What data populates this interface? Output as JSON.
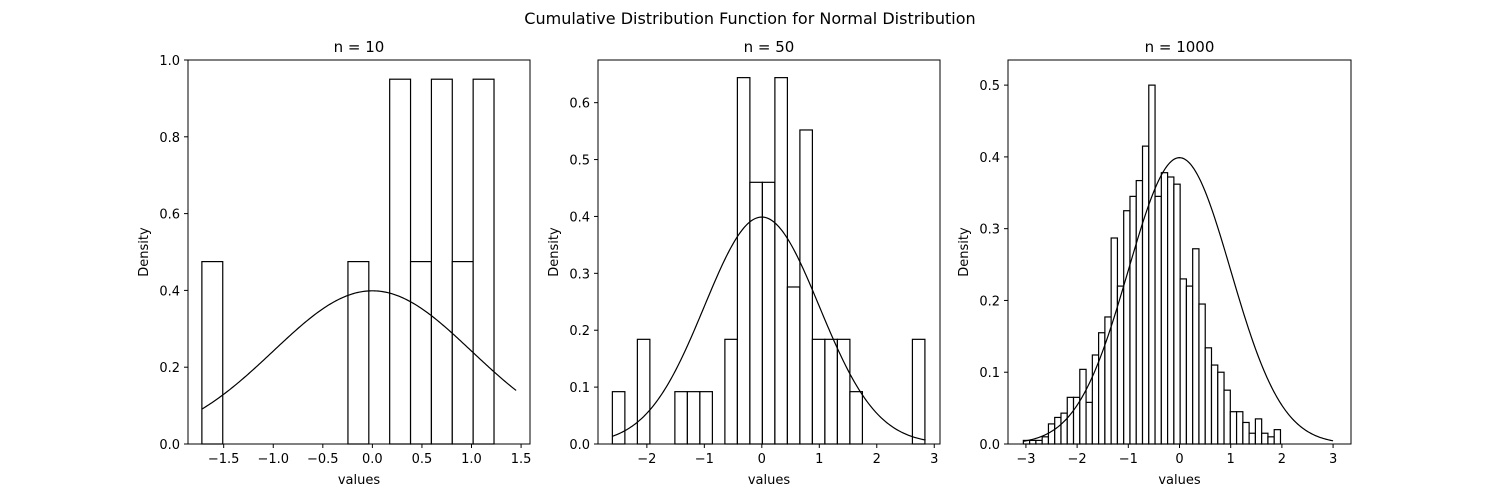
{
  "suptitle": "Cumulative Distribution Function for Normal Distribution",
  "chart_data": [
    {
      "type": "bar",
      "title": "n = 10",
      "xlabel": "values",
      "ylabel": "Density",
      "xlim": [
        -1.86,
        1.59
      ],
      "ylim": [
        0,
        1.0
      ],
      "xticks": [
        -1.5,
        -1.0,
        -0.5,
        0.0,
        0.5,
        1.0,
        1.5
      ],
      "xtick_labels": [
        "−1.5",
        "−1.0",
        "−0.5",
        "0.0",
        "0.5",
        "1.0",
        "1.5"
      ],
      "yticks": [
        0.0,
        0.2,
        0.4,
        0.6,
        0.8,
        1.0
      ],
      "ytick_labels": [
        "0.0",
        "0.2",
        "0.4",
        "0.6",
        "0.8",
        "1.0"
      ],
      "bin_start": -1.72,
      "bin_width": 0.2105,
      "densities": [
        0.475,
        0,
        0,
        0,
        0,
        0,
        0,
        0.475,
        0,
        0.95,
        0.475,
        0.95,
        0.475,
        0.95
      ],
      "curve": {
        "x": [
          -1.72,
          1.45
        ],
        "mean": 0,
        "sd": 1
      }
    },
    {
      "type": "bar",
      "title": "n = 50",
      "xlabel": "values",
      "ylabel": "Density",
      "xlim": [
        -2.85,
        3.1
      ],
      "ylim": [
        0,
        0.675
      ],
      "xticks": [
        -2,
        -1,
        0,
        1,
        2,
        3
      ],
      "xtick_labels": [
        "−2",
        "−1",
        "0",
        "1",
        "2",
        "3"
      ],
      "yticks": [
        0.0,
        0.1,
        0.2,
        0.3,
        0.4,
        0.5,
        0.6
      ],
      "ytick_labels": [
        "0.0",
        "0.1",
        "0.2",
        "0.3",
        "0.4",
        "0.5",
        "0.6"
      ],
      "bin_start": -2.6,
      "bin_width": 0.2175,
      "densities": [
        0.092,
        0,
        0.184,
        0,
        0,
        0.092,
        0.092,
        0.092,
        0,
        0.184,
        0.644,
        0.46,
        0.46,
        0.644,
        0.276,
        0.552,
        0.184,
        0.184,
        0.184,
        0.092,
        0,
        0,
        0,
        0,
        0.184
      ],
      "curve": {
        "x": [
          -2.6,
          2.85
        ],
        "mean": 0,
        "sd": 1
      }
    },
    {
      "type": "bar",
      "title": "n = 1000",
      "xlabel": "values",
      "ylabel": "Density",
      "xlim": [
        -3.35,
        3.35
      ],
      "ylim": [
        0,
        0.535
      ],
      "xticks": [
        -3,
        -2,
        -1,
        0,
        1,
        2,
        3
      ],
      "xtick_labels": [
        "−3",
        "−2",
        "−1",
        "0",
        "1",
        "2",
        "3"
      ],
      "yticks": [
        0.0,
        0.1,
        0.2,
        0.3,
        0.4,
        0.5
      ],
      "ytick_labels": [
        "0.0",
        "0.1",
        "0.2",
        "0.3",
        "0.4",
        "0.5"
      ],
      "bin_start": -3.05,
      "bin_width": 0.1225,
      "densities": [
        0.005,
        0.005,
        0.005,
        0.01,
        0.028,
        0.037,
        0.043,
        0.065,
        0.065,
        0.104,
        0.058,
        0.124,
        0.155,
        0.177,
        0.287,
        0.22,
        0.325,
        0.345,
        0.367,
        0.415,
        0.5,
        0.345,
        0.378,
        0.372,
        0.362,
        0.23,
        0.22,
        0.272,
        0.195,
        0.134,
        0.11,
        0.1,
        0.075,
        0.045,
        0.045,
        0.03,
        0.015,
        0.035,
        0.015,
        0.01,
        0.02
      ],
      "curve": {
        "x": [
          -3.05,
          3.0
        ],
        "mean": 0,
        "sd": 1
      }
    }
  ]
}
